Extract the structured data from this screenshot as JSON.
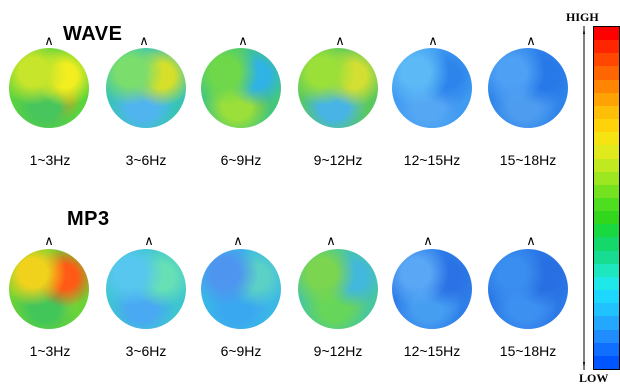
{
  "rows": [
    {
      "title": "WAVE",
      "maps": [
        {
          "label": "1~3Hz",
          "colors": [
            "#5ad33d",
            "#c7e52a",
            "#f2ee20",
            "#48c55c",
            "#ff9900"
          ]
        },
        {
          "label": "3~6Hz",
          "colors": [
            "#38c4b5",
            "#7bdd6c",
            "#d6df2a",
            "#50b5ee",
            "#35c3d0"
          ]
        },
        {
          "label": "6~9Hz",
          "colors": [
            "#45c77b",
            "#6fd84a",
            "#2fb2e4",
            "#9adf3a",
            "#4ab36f"
          ]
        },
        {
          "label": "9~12Hz",
          "colors": [
            "#59c85e",
            "#9ae039",
            "#d3df32",
            "#47b4e5",
            "#78d24e"
          ]
        },
        {
          "label": "12~15Hz",
          "colors": [
            "#3f9bf2",
            "#5cb9f6",
            "#2d85eb",
            "#56a7f3",
            "#3b8ff0"
          ]
        },
        {
          "label": "15~18Hz",
          "colors": [
            "#2f84ea",
            "#4ea0f4",
            "#2778e8",
            "#4d9cf0",
            "#3a8cef"
          ]
        }
      ]
    },
    {
      "title": "MP3",
      "maps": [
        {
          "label": "1~3Hz",
          "colors": [
            "#6ad336",
            "#f0d21d",
            "#ff5a16",
            "#42c65a",
            "#9fd82e"
          ]
        },
        {
          "label": "3~6Hz",
          "colors": [
            "#3ec6d0",
            "#57c7ef",
            "#66e0b4",
            "#49a9f2",
            "#35c3d4"
          ]
        },
        {
          "label": "6~9Hz",
          "colors": [
            "#39b8e6",
            "#4e95f0",
            "#5ad0c6",
            "#3aa8f0",
            "#45b4ea"
          ]
        },
        {
          "label": "9~12Hz",
          "colors": [
            "#49c79c",
            "#7bd54f",
            "#42b8dc",
            "#65d65a",
            "#5fc787"
          ]
        },
        {
          "label": "12~15Hz",
          "colors": [
            "#2e7ee8",
            "#59a7f5",
            "#2a72e5",
            "#469ef1",
            "#3c8fed"
          ]
        },
        {
          "label": "15~18Hz",
          "colors": [
            "#2b78e6",
            "#3a8eef",
            "#276fe2",
            "#3c90f0",
            "#357fe9"
          ]
        }
      ]
    }
  ],
  "scale": {
    "high_label": "HIGH",
    "low_label": "LOW",
    "colors": [
      "#0055ff",
      "#116fff",
      "#1f8cff",
      "#23a7ff",
      "#20c2ff",
      "#1ed7ff",
      "#1ee8e8",
      "#1ee7bf",
      "#18dc92",
      "#15d86a",
      "#1ad83f",
      "#31d61d",
      "#4fdd1f",
      "#74e21e",
      "#9ce720",
      "#c0ea1f",
      "#dfe91b",
      "#f5e313",
      "#fed30b",
      "#ffbe08",
      "#ffa304",
      "#ff8502",
      "#ff6601",
      "#ff4700",
      "#ff2500",
      "#ff0000"
    ]
  }
}
